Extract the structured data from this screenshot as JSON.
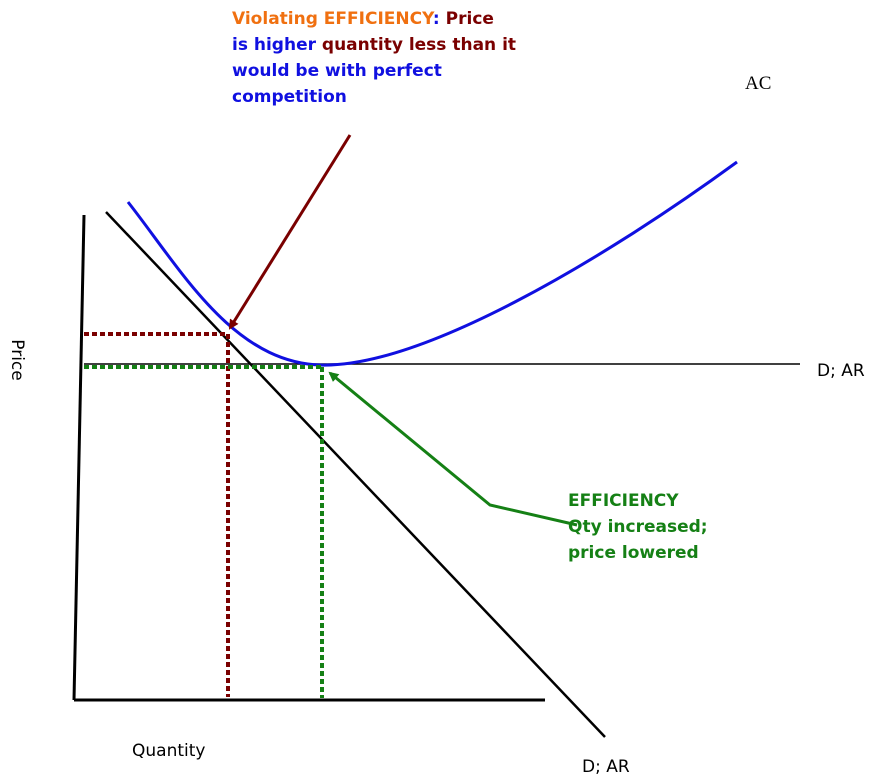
{
  "annotation_top": {
    "line1": [
      "Violating EFFICIENCY",
      ":",
      " Price"
    ],
    "line2": [
      "is higher",
      " quantity less than it"
    ],
    "line3": "would be with perfect",
    "line4": "competition"
  },
  "curve_labels": {
    "ac": "AC",
    "horizontal_demand": "D; AR",
    "diagonal_demand": "D; AR"
  },
  "axes": {
    "y_label": "Price",
    "x_label": "Quantity"
  },
  "annotation_bottom": {
    "line1": "EFFICIENCY",
    "line2": "Qty increased;",
    "line3": "price lowered"
  }
}
